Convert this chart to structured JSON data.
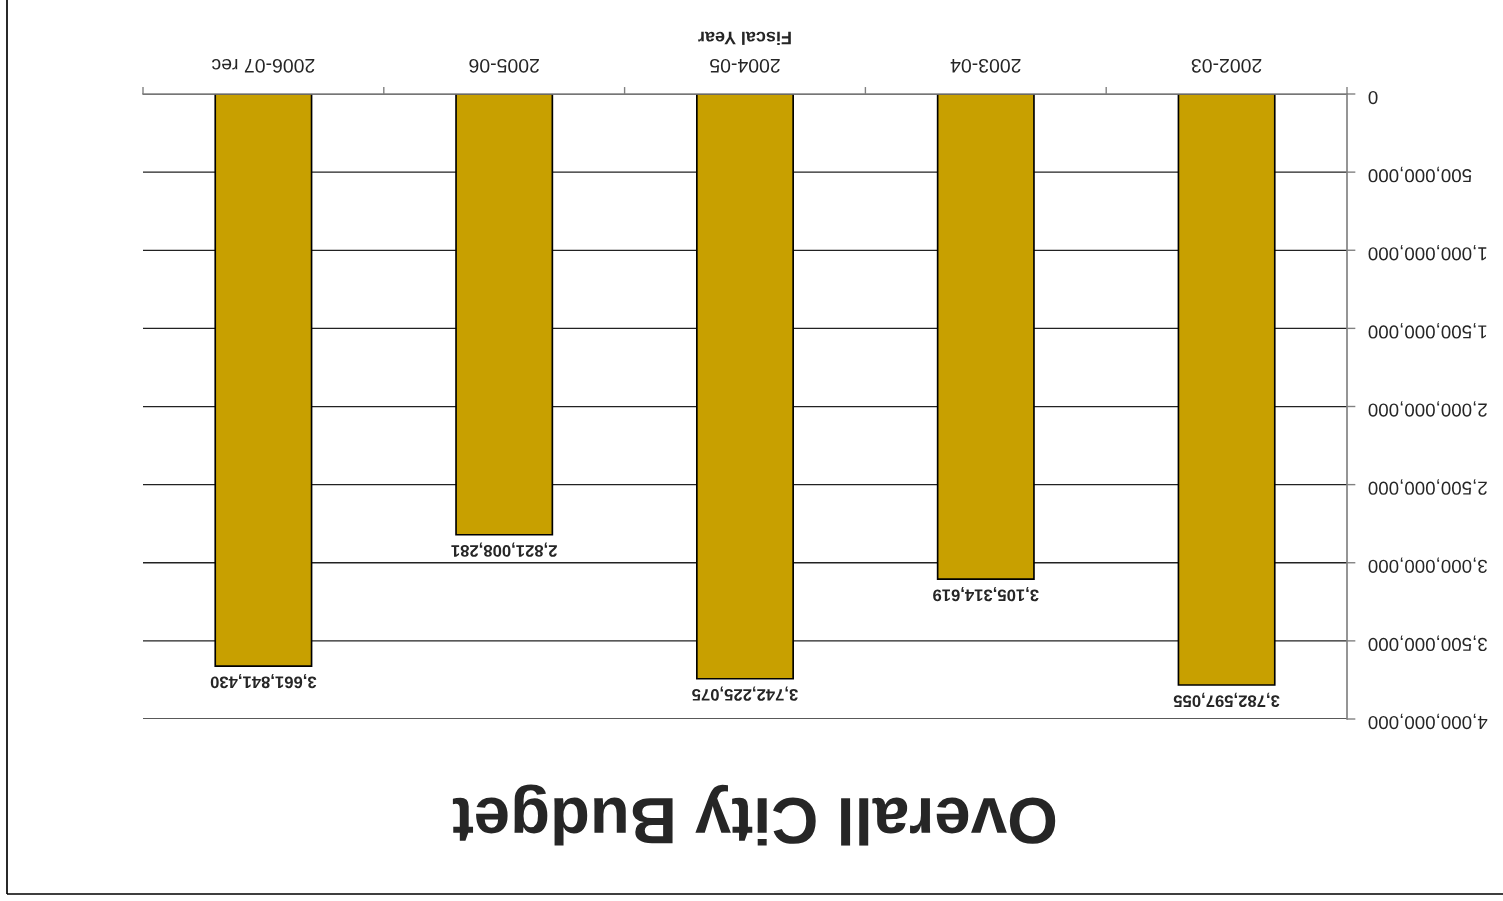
{
  "chart_data": {
    "type": "bar",
    "title": "Overall City Budget",
    "xlabel": "Fiscal Year",
    "categories": [
      "2006-07 rec",
      "2005-06",
      "2004-05",
      "2003-04",
      "2002-03"
    ],
    "values": [
      3661841430,
      2821008281,
      3742225075,
      3105314619,
      3782597055
    ],
    "value_labels": [
      "3,661,841,430",
      "2,821,008,281",
      "3,742,225,075",
      "3,105,314,619",
      "3,782,597,055"
    ],
    "color": "#c8a000",
    "ylim": [
      4000000000,
      0
    ],
    "yticks": [
      0,
      {
        "value": 500000000,
        "label": "500,000,000"
      },
      {
        "value": 1000000000,
        "label": "1,000,000,000"
      },
      {
        "value": 1500000000,
        "label": "1,500,000,000"
      },
      {
        "value": 2000000000,
        "label": "2,000,000,000"
      },
      {
        "value": 2500000000,
        "label": "2,500,000,000"
      },
      {
        "value": 3000000000,
        "label": "3,000,000,000"
      },
      {
        "value": 3500000000,
        "label": "3,500,000,000"
      },
      {
        "value": 4000000000,
        "label": "4,000,000,000"
      }
    ],
    "grid": "y"
  }
}
